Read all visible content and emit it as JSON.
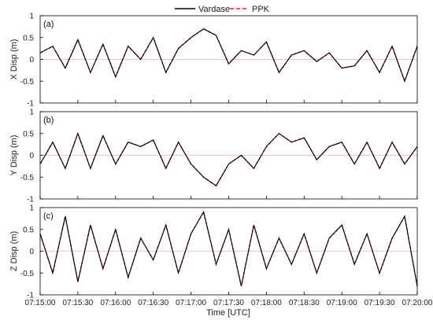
{
  "legend": {
    "items": [
      {
        "label": "Vardase",
        "color": "#000000",
        "style": "solid"
      },
      {
        "label": "PPK",
        "color": "#e0203a",
        "style": "dashed"
      }
    ]
  },
  "chart_data": {
    "type": "line",
    "xlabel": "Time [UTC]",
    "x_ticks": [
      "07:15:00",
      "07:15:30",
      "07:16:00",
      "07:16:30",
      "07:17:00",
      "07:17:30",
      "07:18:00",
      "07:18:30",
      "07:19:00",
      "07:19:30",
      "07:20:00"
    ],
    "xlim_seconds": [
      0,
      300
    ],
    "grid": false,
    "legend_position": "top-center",
    "panels": [
      {
        "tag": "(a)",
        "ylabel": "X Disp (m)",
        "ylim": [
          -1,
          1
        ],
        "y_ticks": [
          "-1",
          "-0.5",
          "0",
          "0.5",
          "1"
        ],
        "series": [
          {
            "name": "Vardase",
            "color": "#000000",
            "dash": "solid"
          },
          {
            "name": "PPK",
            "color": "#e0203a",
            "dash": "dashed"
          }
        ],
        "x": [
          0,
          10,
          20,
          30,
          40,
          50,
          60,
          70,
          80,
          90,
          100,
          110,
          120,
          130,
          140,
          150,
          160,
          170,
          180,
          190,
          200,
          210,
          220,
          230,
          240,
          250,
          260,
          270,
          280,
          290,
          300
        ],
        "values": [
          0.15,
          0.3,
          -0.2,
          0.45,
          -0.3,
          0.35,
          -0.4,
          0.3,
          0.0,
          0.5,
          -0.3,
          0.25,
          0.5,
          0.7,
          0.55,
          -0.1,
          0.2,
          0.1,
          0.4,
          -0.3,
          0.1,
          0.2,
          -0.05,
          0.15,
          -0.2,
          -0.15,
          0.2,
          -0.3,
          0.3,
          -0.5,
          0.3
        ]
      },
      {
        "tag": "(b)",
        "ylabel": "Y Disp (m)",
        "ylim": [
          -1,
          1
        ],
        "y_ticks": [
          "-1",
          "-0.5",
          "0",
          "0.5",
          "1"
        ],
        "series": [
          {
            "name": "Vardase",
            "color": "#000000",
            "dash": "solid"
          },
          {
            "name": "PPK",
            "color": "#e0203a",
            "dash": "dashed"
          }
        ],
        "x": [
          0,
          10,
          20,
          30,
          40,
          50,
          60,
          70,
          80,
          90,
          100,
          110,
          120,
          130,
          140,
          150,
          160,
          170,
          180,
          190,
          200,
          210,
          220,
          230,
          240,
          250,
          260,
          270,
          280,
          290,
          300
        ],
        "values": [
          -0.2,
          0.3,
          -0.3,
          0.5,
          -0.3,
          0.45,
          -0.2,
          0.3,
          0.2,
          0.35,
          -0.3,
          0.3,
          -0.2,
          -0.5,
          -0.7,
          -0.2,
          0.0,
          -0.3,
          0.2,
          0.5,
          0.3,
          0.4,
          -0.1,
          0.2,
          0.3,
          -0.2,
          0.3,
          -0.3,
          0.3,
          -0.2,
          0.2
        ]
      },
      {
        "tag": "(c)",
        "ylabel": "Z Disp (m)",
        "ylim": [
          -1,
          1
        ],
        "y_ticks": [
          "-1",
          "-0.5",
          "0",
          "0.5",
          "1"
        ],
        "series": [
          {
            "name": "Vardase",
            "color": "#000000",
            "dash": "solid"
          },
          {
            "name": "PPK",
            "color": "#e0203a",
            "dash": "dashed"
          }
        ],
        "x": [
          0,
          10,
          20,
          30,
          40,
          50,
          60,
          70,
          80,
          90,
          100,
          110,
          120,
          130,
          140,
          150,
          160,
          170,
          180,
          190,
          200,
          210,
          220,
          230,
          240,
          250,
          260,
          270,
          280,
          290,
          300
        ],
        "values": [
          0.4,
          -0.5,
          0.8,
          -0.7,
          0.6,
          -0.4,
          0.5,
          -0.6,
          0.3,
          -0.2,
          0.6,
          -0.5,
          0.4,
          0.9,
          -0.3,
          0.5,
          -0.8,
          0.6,
          -0.4,
          0.3,
          -0.3,
          0.4,
          -0.5,
          0.3,
          0.6,
          -0.3,
          0.4,
          -0.5,
          0.3,
          0.8,
          -0.8
        ]
      }
    ]
  }
}
